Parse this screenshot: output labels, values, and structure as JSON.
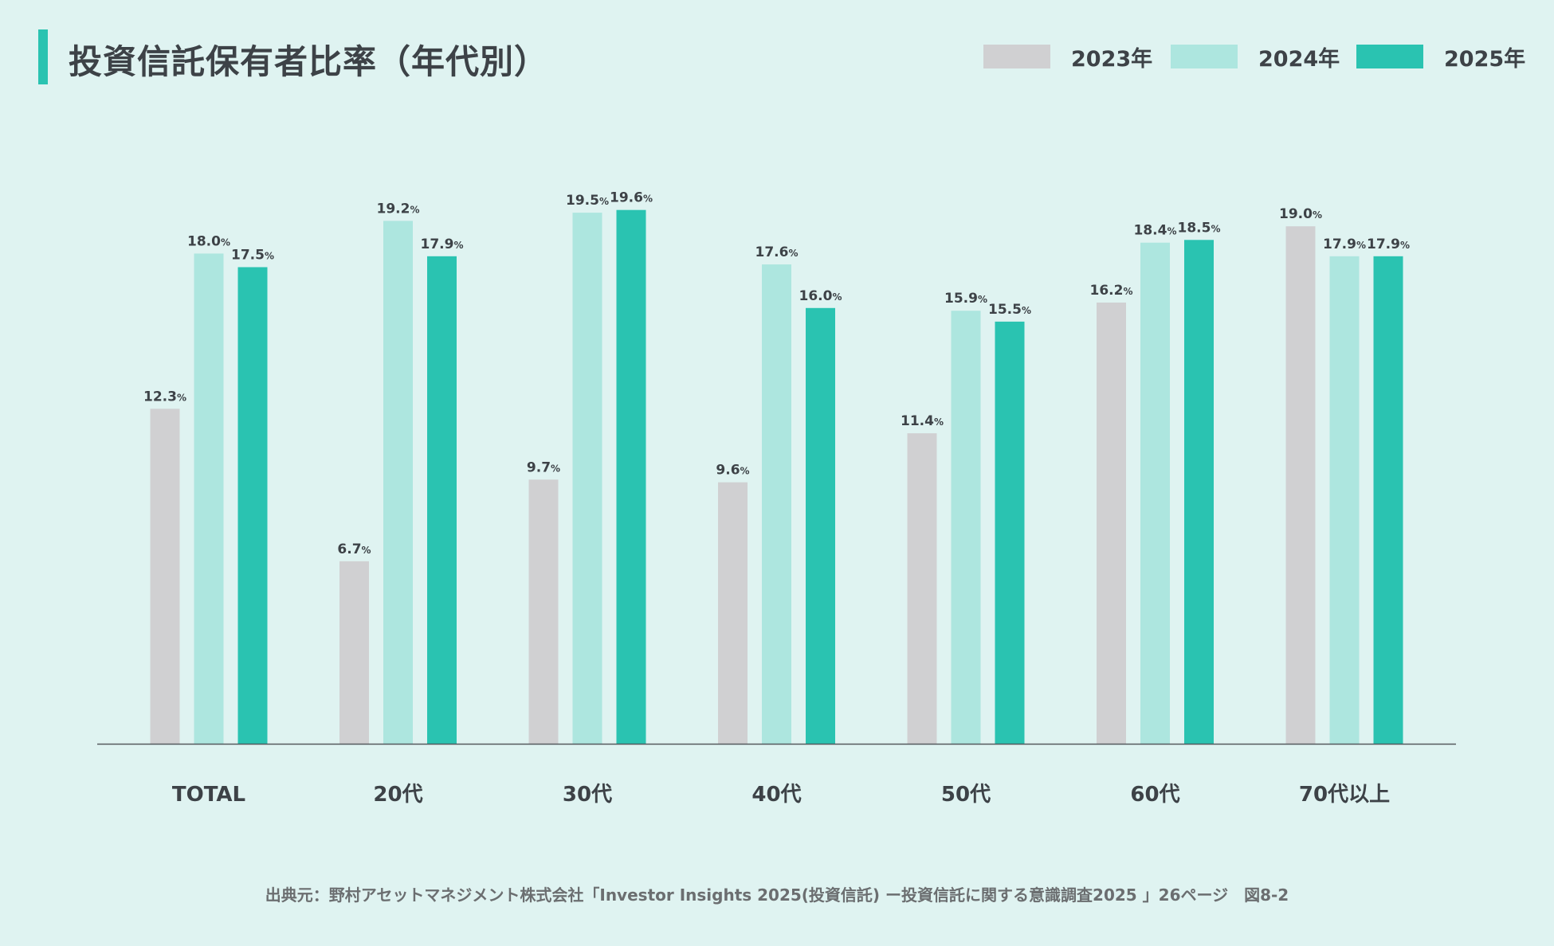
{
  "title": "投資信託保有者比率（年代別）",
  "source": "出典元：野村アセットマネジメント株式会社「Investor Insights 2025(投資信託) ー投資信託に関する意識調査2025 」26ページ　図8-2",
  "colors": {
    "background": "#dff3f1",
    "accent": "#2ac3b1",
    "s2023": "#d0d0d2",
    "s2024": "#ade6df",
    "s2025": "#2ac3b1"
  },
  "chart_data": {
    "type": "bar",
    "title": "投資信託保有者比率（年代別）",
    "categories": [
      "TOTAL",
      "20代",
      "30代",
      "40代",
      "50代",
      "60代",
      "70代以上"
    ],
    "series": [
      {
        "name": "2023年",
        "color": "#d0d0d2",
        "values": [
          12.3,
          6.7,
          9.7,
          9.6,
          11.4,
          16.2,
          19.0
        ]
      },
      {
        "name": "2024年",
        "color": "#ade6df",
        "values": [
          18.0,
          19.2,
          19.5,
          17.6,
          15.9,
          18.4,
          17.9
        ]
      },
      {
        "name": "2025年",
        "color": "#2ac3b1",
        "values": [
          17.5,
          17.9,
          19.6,
          16.0,
          15.5,
          18.5,
          17.9
        ]
      }
    ],
    "value_suffix": "%",
    "ylim": [
      0,
      20
    ],
    "grid": false,
    "legend_position": "top-right"
  }
}
